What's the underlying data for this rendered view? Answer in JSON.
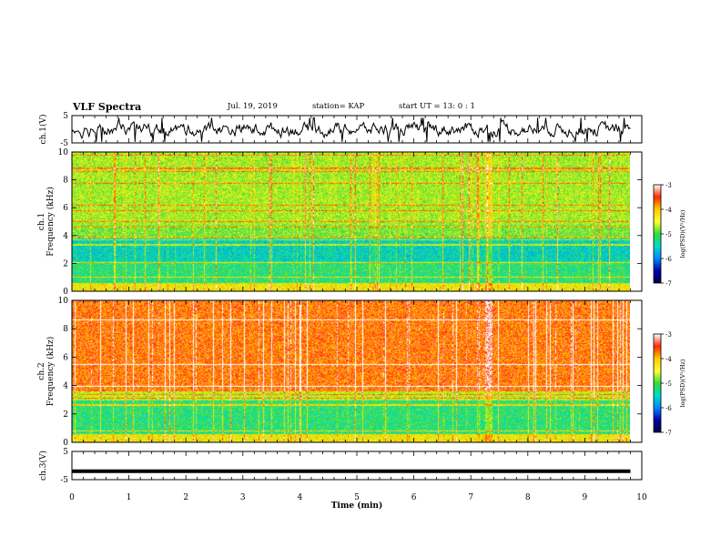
{
  "header": {
    "title": "VLF Spectra",
    "date": "Jul. 19, 2019",
    "station": "station= KAP",
    "start": "start UT =  13: 0  : 1"
  },
  "colorbar": {
    "label": "log(PSD)(V²/Hz)",
    "ticks": [
      "-3",
      "-4",
      "-5",
      "-6",
      "-7"
    ],
    "colors": [
      "#ffffff",
      "#ff2a00",
      "#ffcc00",
      "#ffff33",
      "#33dd33",
      "#00ddcc",
      "#0088ff",
      "#0000aa",
      "#000044"
    ]
  },
  "chart_data": [
    {
      "type": "line",
      "ylabel": "ch.1(V)",
      "ylim": [
        -5,
        5
      ],
      "yticks": [
        "5",
        "-5"
      ],
      "x_range_min": [
        0,
        9.8
      ],
      "description_values": "noisy waveform fluctuating roughly between -3 and 3 V"
    },
    {
      "type": "heatmap",
      "ylabel_a": "ch.1",
      "ylabel_b": "Frequency (kHz)",
      "ylim": [
        0,
        10
      ],
      "yticks": [
        "0",
        "2",
        "4",
        "6",
        "8",
        "10"
      ],
      "x_range_min": [
        0,
        9.8
      ],
      "value_range": [
        -7,
        -3
      ]
    },
    {
      "type": "heatmap",
      "ylabel_a": "ch.2",
      "ylabel_b": "Frequency (kHz)",
      "ylim": [
        0,
        10
      ],
      "yticks": [
        "0",
        "2",
        "4",
        "6",
        "8",
        "10"
      ],
      "x_range_min": [
        0,
        9.8
      ],
      "value_range": [
        -7,
        -3
      ]
    },
    {
      "type": "line",
      "ylabel": "ch.3(V)",
      "ylim": [
        -5,
        5
      ],
      "yticks": [
        "5",
        "-5"
      ],
      "x_range_min": [
        0,
        9.8
      ],
      "values_constant": -2
    }
  ],
  "xaxis": {
    "label": "Time (min)",
    "ticks": [
      "0",
      "1",
      "2",
      "3",
      "4",
      "5",
      "6",
      "7",
      "8",
      "9",
      "10"
    ],
    "range": [
      0,
      10
    ]
  }
}
